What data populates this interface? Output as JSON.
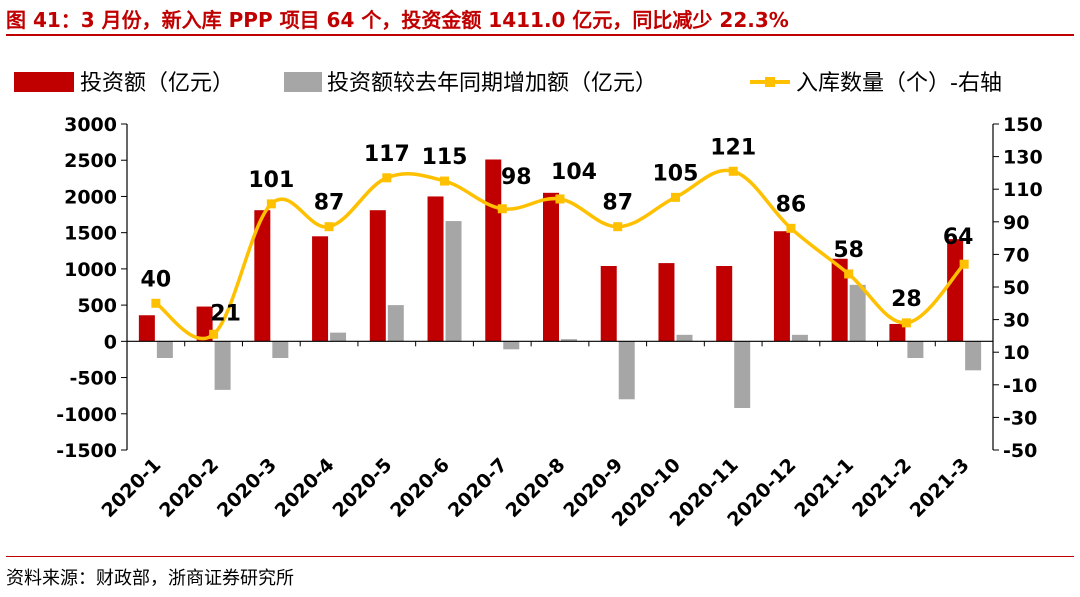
{
  "header": {
    "title": "图 41：3 月份，新入库 PPP 项目 64 个，投资金额 1411.0 亿元，同比减少 22.3%"
  },
  "footer": {
    "source": "资料来源：财政部，浙商证券研究所"
  },
  "colors": {
    "investment": "#c00000",
    "increase": "#a6a6a6",
    "count": "#ffc000"
  },
  "chart_data": {
    "type": "bar",
    "title": "",
    "categories": [
      "2020-1",
      "2020-2",
      "2020-3",
      "2020-4",
      "2020-5",
      "2020-6",
      "2020-7",
      "2020-8",
      "2020-9",
      "2020-10",
      "2020-11",
      "2020-12",
      "2021-1",
      "2021-2",
      "2021-3"
    ],
    "series": [
      {
        "name": "投资额（亿元）",
        "type": "bar",
        "axis": "left",
        "values": [
          360,
          480,
          1810,
          1450,
          1810,
          2000,
          2510,
          2050,
          1040,
          1080,
          1040,
          1520,
          1140,
          240,
          1411
        ]
      },
      {
        "name": "投资额较去年同期增加额（亿元）",
        "type": "bar",
        "axis": "left",
        "values": [
          -230,
          -670,
          -230,
          120,
          500,
          1660,
          -110,
          30,
          -800,
          90,
          -920,
          90,
          780,
          -230,
          -400
        ]
      },
      {
        "name": "入库数量（个）-右轴",
        "type": "line",
        "axis": "right",
        "values": [
          40,
          21,
          101,
          87,
          117,
          115,
          98,
          104,
          87,
          105,
          121,
          86,
          58,
          28,
          64
        ]
      }
    ],
    "y_left": {
      "min": -1500,
      "max": 3000,
      "ticks": [
        -1500,
        -1000,
        -500,
        0,
        500,
        1000,
        1500,
        2000,
        2500,
        3000
      ]
    },
    "y_right": {
      "min": -50,
      "max": 150,
      "ticks": [
        -50,
        -30,
        -10,
        10,
        30,
        50,
        70,
        90,
        110,
        130,
        150
      ]
    },
    "legend": {
      "position": "top"
    },
    "grid": false
  }
}
